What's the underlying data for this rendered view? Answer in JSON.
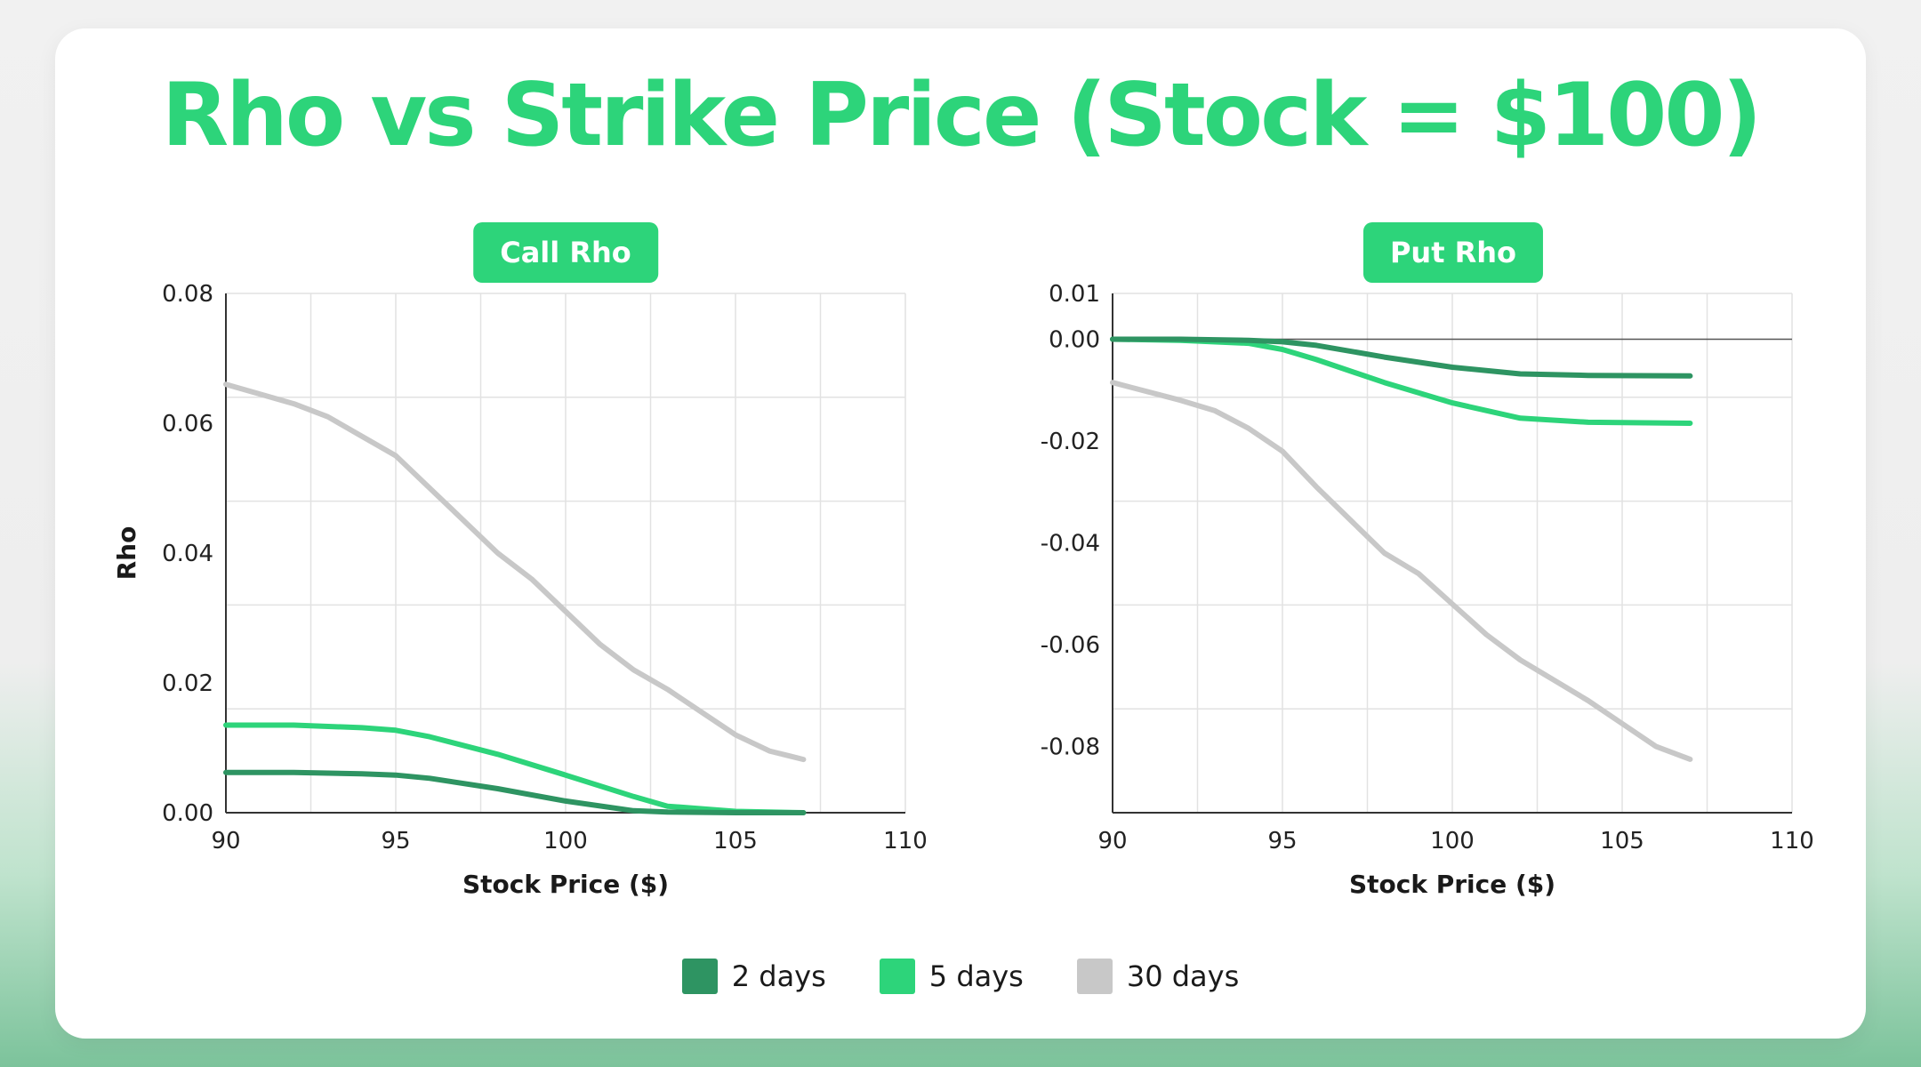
{
  "title": "Rho vs Strike Price (Stock = $100)",
  "legend": [
    {
      "label": "2 days",
      "color": "#2e9462"
    },
    {
      "label": "5 days",
      "color": "#2dd47a"
    },
    {
      "label": "30 days",
      "color": "#c8c8c8"
    }
  ],
  "chart_data": [
    {
      "type": "line",
      "title": "Call Rho",
      "xlabel": "Stock Price ($)",
      "ylabel": "Rho",
      "xlim": [
        90,
        110
      ],
      "ylim": [
        0,
        0.08
      ],
      "xticks": [
        "90",
        "95",
        "100",
        "105",
        "110"
      ],
      "yticks": [
        "0.00",
        "0.02",
        "0.04",
        "0.06",
        "0.08"
      ],
      "grid": true,
      "series": [
        {
          "name": "2 days",
          "color": "#2e9462",
          "x": [
            90,
            92,
            94,
            95,
            96,
            98,
            100,
            102,
            103,
            105,
            107
          ],
          "y": [
            0.0062,
            0.0062,
            0.006,
            0.0058,
            0.0053,
            0.0037,
            0.0018,
            0.0003,
            0.0001,
            0.0,
            0.0
          ]
        },
        {
          "name": "5 days",
          "color": "#2dd47a",
          "x": [
            90,
            92,
            94,
            95,
            96,
            98,
            100,
            102,
            103,
            105,
            107
          ],
          "y": [
            0.0135,
            0.0135,
            0.0131,
            0.0127,
            0.0117,
            0.009,
            0.0058,
            0.0025,
            0.001,
            0.0002,
            0.0
          ]
        },
        {
          "name": "30 days",
          "color": "#c8c8c8",
          "x": [
            90,
            92,
            93,
            94,
            95,
            96,
            97,
            98,
            99,
            100,
            101,
            102,
            103,
            104,
            105,
            106,
            107
          ],
          "y": [
            0.066,
            0.063,
            0.061,
            0.058,
            0.055,
            0.05,
            0.045,
            0.04,
            0.036,
            0.031,
            0.026,
            0.022,
            0.019,
            0.0155,
            0.012,
            0.0095,
            0.0082
          ]
        }
      ]
    },
    {
      "type": "line",
      "title": "Put Rho",
      "xlabel": "Stock Price ($)",
      "ylabel": "",
      "xlim": [
        90,
        110
      ],
      "ylim": [
        -0.093,
        0.009
      ],
      "xticks": [
        "90",
        "95",
        "100",
        "105",
        "110"
      ],
      "yticks": [
        "0.01",
        "0.00",
        "-0.02",
        "-0.04",
        "-0.06",
        "-0.08"
      ],
      "ytick_values": [
        0.009,
        0,
        -0.02,
        -0.04,
        -0.06,
        -0.08
      ],
      "grid": true,
      "series": [
        {
          "name": "2 days",
          "color": "#2e9462",
          "x": [
            90,
            92,
            94,
            95,
            96,
            98,
            100,
            102,
            104,
            107
          ],
          "y": [
            0.0,
            0.0,
            -0.0002,
            -0.0005,
            -0.0012,
            -0.0035,
            -0.0055,
            -0.0068,
            -0.0071,
            -0.0072
          ]
        },
        {
          "name": "5 days",
          "color": "#2dd47a",
          "x": [
            90,
            92,
            94,
            95,
            96,
            98,
            100,
            102,
            104,
            107
          ],
          "y": [
            0.0,
            -0.0002,
            -0.0008,
            -0.002,
            -0.004,
            -0.0085,
            -0.0125,
            -0.0155,
            -0.0163,
            -0.0165
          ]
        },
        {
          "name": "30 days",
          "color": "#c8c8c8",
          "x": [
            90,
            92,
            93,
            94,
            95,
            96,
            97,
            98,
            99,
            100,
            101,
            102,
            103,
            104,
            105,
            106,
            107
          ],
          "y": [
            -0.0085,
            -0.012,
            -0.014,
            -0.0175,
            -0.022,
            -0.029,
            -0.0355,
            -0.042,
            -0.046,
            -0.052,
            -0.058,
            -0.063,
            -0.067,
            -0.071,
            -0.0755,
            -0.08,
            -0.0825
          ]
        }
      ]
    }
  ]
}
